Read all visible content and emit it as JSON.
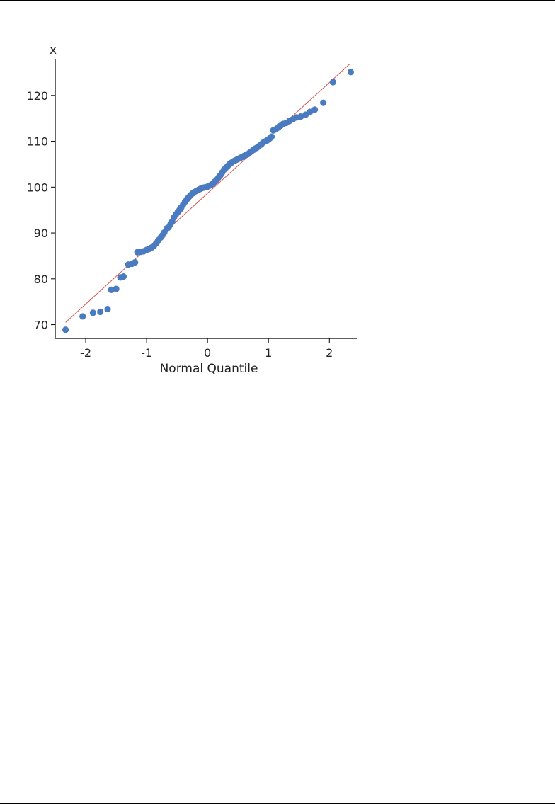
{
  "chart_data": {
    "type": "scatter",
    "subtype": "normal-quantile-plot",
    "title": "",
    "xlabel": "Normal Quantile",
    "ylabel": "x",
    "xlim": [
      -2.5,
      2.45
    ],
    "ylim": [
      67,
      128
    ],
    "x_ticks": [
      -2,
      -1,
      0,
      1,
      2
    ],
    "x_tick_labels": [
      "-2",
      "-1",
      "0",
      "1",
      "2"
    ],
    "y_ticks": [
      70,
      80,
      90,
      100,
      110,
      120
    ],
    "y_tick_labels": [
      "70",
      "80",
      "90",
      "100",
      "110",
      "120"
    ],
    "grid": false,
    "legend": "none",
    "colors": {
      "points": "#4a7ac0",
      "reference_line": "#d9534f",
      "axes": "#000000"
    },
    "reference_line": {
      "x": [
        -2.33,
        2.33
      ],
      "y": [
        70.5,
        126.8
      ]
    },
    "series": [
      {
        "values": [
          [
            -2.33,
            68.9
          ],
          [
            -2.05,
            71.8
          ],
          [
            -1.88,
            72.6
          ],
          [
            -1.76,
            72.8
          ],
          [
            -1.64,
            73.4
          ],
          [
            -1.58,
            77.6
          ],
          [
            -1.5,
            77.8
          ],
          [
            -1.43,
            80.3
          ],
          [
            -1.38,
            80.5
          ],
          [
            -1.3,
            83.1
          ],
          [
            -1.24,
            83.3
          ],
          [
            -1.19,
            83.6
          ],
          [
            -1.15,
            85.8
          ],
          [
            -1.1,
            85.9
          ],
          [
            -1.05,
            86.0
          ],
          [
            -1.0,
            86.3
          ],
          [
            -0.96,
            86.5
          ],
          [
            -0.92,
            86.8
          ],
          [
            -0.88,
            87.2
          ],
          [
            -0.84,
            87.8
          ],
          [
            -0.81,
            88.4
          ],
          [
            -0.77,
            89.0
          ],
          [
            -0.74,
            89.5
          ],
          [
            -0.71,
            90.1
          ],
          [
            -0.67,
            91.0
          ],
          [
            -0.64,
            91.2
          ],
          [
            -0.61,
            91.8
          ],
          [
            -0.58,
            92.5
          ],
          [
            -0.55,
            93.4
          ],
          [
            -0.52,
            94.0
          ],
          [
            -0.49,
            94.5
          ],
          [
            -0.46,
            95.0
          ],
          [
            -0.43,
            95.6
          ],
          [
            -0.4,
            96.2
          ],
          [
            -0.37,
            96.8
          ],
          [
            -0.34,
            97.3
          ],
          [
            -0.31,
            97.8
          ],
          [
            -0.28,
            98.2
          ],
          [
            -0.25,
            98.6
          ],
          [
            -0.22,
            98.9
          ],
          [
            -0.18,
            99.2
          ],
          [
            -0.15,
            99.4
          ],
          [
            -0.12,
            99.6
          ],
          [
            -0.09,
            99.8
          ],
          [
            -0.06,
            99.9
          ],
          [
            -0.03,
            100.0
          ],
          [
            0.0,
            100.1
          ],
          [
            0.03,
            100.3
          ],
          [
            0.06,
            100.5
          ],
          [
            0.09,
            100.8
          ],
          [
            0.12,
            101.2
          ],
          [
            0.15,
            101.6
          ],
          [
            0.18,
            102.1
          ],
          [
            0.21,
            102.6
          ],
          [
            0.24,
            103.2
          ],
          [
            0.27,
            103.8
          ],
          [
            0.3,
            104.2
          ],
          [
            0.33,
            104.6
          ],
          [
            0.36,
            105.0
          ],
          [
            0.39,
            105.3
          ],
          [
            0.42,
            105.6
          ],
          [
            0.45,
            105.8
          ],
          [
            0.48,
            106.0
          ],
          [
            0.51,
            106.2
          ],
          [
            0.54,
            106.4
          ],
          [
            0.57,
            106.6
          ],
          [
            0.6,
            106.8
          ],
          [
            0.63,
            107.0
          ],
          [
            0.66,
            107.2
          ],
          [
            0.69,
            107.5
          ],
          [
            0.72,
            107.8
          ],
          [
            0.75,
            108.1
          ],
          [
            0.78,
            108.4
          ],
          [
            0.81,
            108.6
          ],
          [
            0.84,
            108.9
          ],
          [
            0.88,
            109.3
          ],
          [
            0.91,
            109.7
          ],
          [
            0.95,
            110.0
          ],
          [
            0.98,
            110.2
          ],
          [
            1.02,
            110.6
          ],
          [
            1.05,
            111.0
          ],
          [
            1.08,
            112.4
          ],
          [
            1.12,
            112.6
          ],
          [
            1.16,
            113.0
          ],
          [
            1.2,
            113.4
          ],
          [
            1.24,
            113.8
          ],
          [
            1.29,
            114.0
          ],
          [
            1.34,
            114.4
          ],
          [
            1.4,
            114.8
          ],
          [
            1.46,
            115.2
          ],
          [
            1.53,
            115.4
          ],
          [
            1.61,
            115.8
          ],
          [
            1.68,
            116.4
          ],
          [
            1.76,
            116.9
          ],
          [
            1.9,
            118.4
          ],
          [
            2.06,
            122.9
          ],
          [
            2.35,
            125.1
          ]
        ]
      }
    ]
  }
}
